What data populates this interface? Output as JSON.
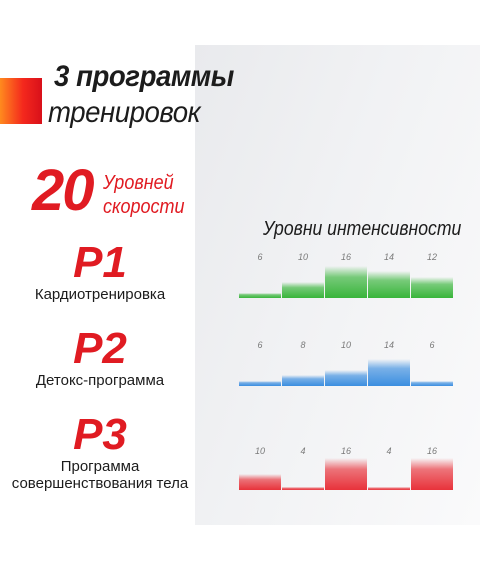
{
  "title": {
    "line1": "3 программы",
    "line2": "тренировок"
  },
  "speed": {
    "number": "20",
    "line1": "Уровней",
    "line2": "скорости"
  },
  "intensity_title": "Уровни интенсивности",
  "programs": [
    {
      "code": "P1",
      "name_lines": [
        "Кардиотренировка"
      ],
      "color": "#38b53a",
      "values": [
        6,
        10,
        16,
        14,
        12
      ],
      "labels": [
        "6",
        "10",
        "16",
        "14",
        "12"
      ]
    },
    {
      "code": "P2",
      "name_lines": [
        "Детокс-программа"
      ],
      "color": "#3b8ee0",
      "values": [
        6,
        8,
        10,
        14,
        6
      ],
      "labels": [
        "6",
        "8",
        "10",
        "14",
        "6"
      ]
    },
    {
      "code": "P3",
      "name_lines": [
        "Программа",
        "совершенствования тела"
      ],
      "color": "#e8323a",
      "values": [
        10,
        4,
        16,
        4,
        16
      ],
      "labels": [
        "10",
        "4",
        "16",
        "4",
        "16"
      ]
    }
  ],
  "colors": {
    "accent": "#e01b22",
    "text": "#1c1c1c"
  }
}
